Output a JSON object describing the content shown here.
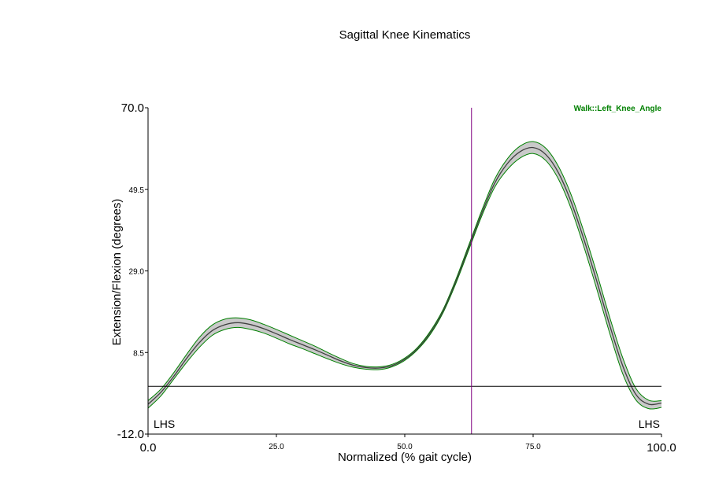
{
  "chart_data": {
    "type": "line",
    "title": "Sagittal Knee Kinematics",
    "xlabel": "Normalized (% gait cycle)",
    "ylabel": "Extension/Flexion (degrees)",
    "xlim": [
      0,
      100
    ],
    "ylim": [
      -12,
      70
    ],
    "x_ticks": [
      {
        "value": 0,
        "label": "0.0",
        "major": true
      },
      {
        "value": 25,
        "label": "25.0",
        "major": false
      },
      {
        "value": 50,
        "label": "50.0",
        "major": false
      },
      {
        "value": 75,
        "label": "75.0",
        "major": false
      },
      {
        "value": 100,
        "label": "100.0",
        "major": true
      }
    ],
    "y_ticks": [
      {
        "value": 70,
        "label": "70.0",
        "major": true
      },
      {
        "value": 49.5,
        "label": "49.5",
        "major": false
      },
      {
        "value": 29,
        "label": "29.0",
        "major": false
      },
      {
        "value": 8.5,
        "label": "8.5",
        "major": false
      },
      {
        "value": -12,
        "label": "-12.0",
        "major": true
      }
    ],
    "zero_line": 0,
    "event_line": {
      "x": 63
    },
    "event_labels": [
      {
        "x": 0,
        "label": "LHS"
      },
      {
        "x": 100,
        "label": "LHS"
      }
    ],
    "legend": {
      "label": "Walk::Left_Knee_Angle",
      "position": "top-right",
      "color": "#008000"
    },
    "series": [
      {
        "name": "Walk::Left_Knee_Angle",
        "color": "#008000",
        "band_color": "#c0c0c0",
        "mean_color": "#404040",
        "x": [
          0,
          2.5,
          5,
          7.5,
          10,
          12.5,
          15,
          17.5,
          20,
          22.5,
          25,
          27.5,
          30,
          32.5,
          35,
          37.5,
          40,
          42.5,
          45,
          47.5,
          50,
          52.5,
          55,
          57.5,
          60,
          62.5,
          65,
          67.5,
          70,
          72.5,
          75,
          77.5,
          80,
          82.5,
          85,
          87.5,
          90,
          92.5,
          95,
          97.5,
          100
        ],
        "mean": [
          -4.5,
          -1.5,
          2.5,
          7.0,
          11.0,
          14.0,
          15.5,
          16.0,
          15.5,
          14.5,
          13.2,
          11.8,
          10.5,
          9.2,
          7.8,
          6.4,
          5.3,
          4.7,
          4.6,
          5.2,
          6.8,
          9.5,
          13.5,
          19.0,
          26.5,
          35.0,
          43.5,
          51.0,
          56.0,
          59.0,
          60.0,
          58.2,
          53.5,
          46.0,
          36.5,
          26.0,
          15.0,
          5.0,
          -2.0,
          -4.5,
          -4.2
        ],
        "upper": [
          -3.6,
          -0.7,
          3.4,
          8.0,
          12.3,
          15.4,
          16.9,
          17.2,
          16.7,
          15.6,
          14.3,
          12.9,
          11.5,
          10.1,
          8.5,
          7.0,
          5.7,
          5.0,
          4.9,
          5.5,
          7.1,
          9.8,
          13.9,
          19.4,
          27.0,
          35.6,
          44.2,
          52.0,
          57.2,
          60.4,
          61.5,
          59.8,
          55.1,
          47.8,
          38.4,
          28.0,
          17.0,
          7.0,
          -0.5,
          -3.5,
          -3.6
        ],
        "lower": [
          -5.5,
          -2.4,
          1.8,
          6.0,
          9.8,
          12.8,
          14.3,
          14.8,
          14.3,
          13.4,
          12.1,
          10.7,
          9.5,
          8.2,
          6.9,
          5.7,
          4.8,
          4.3,
          4.2,
          4.9,
          6.5,
          9.2,
          13.1,
          18.6,
          26.0,
          34.4,
          42.8,
          50.0,
          54.5,
          57.4,
          58.5,
          56.7,
          51.9,
          44.3,
          34.6,
          24.0,
          13.0,
          3.0,
          -3.4,
          -5.6,
          -5.3
        ]
      }
    ]
  }
}
